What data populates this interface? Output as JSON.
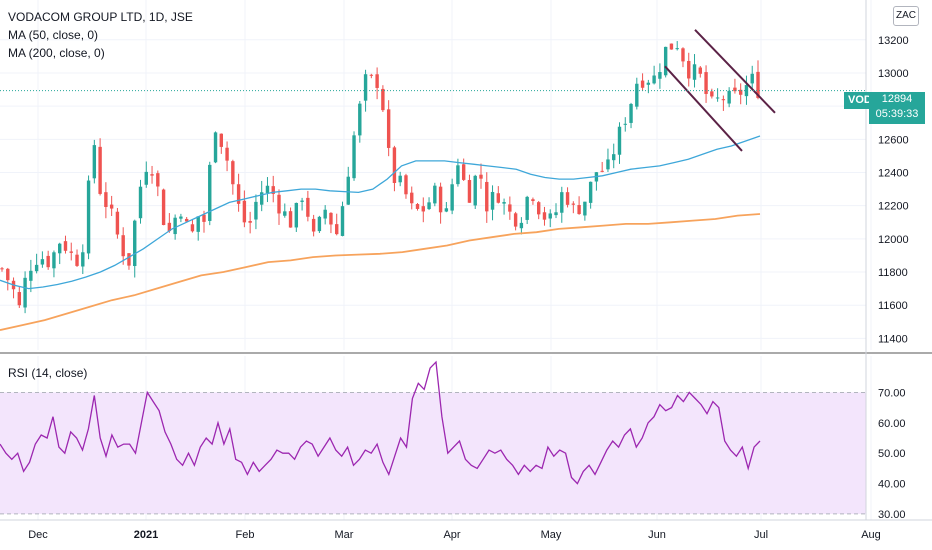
{
  "header": {
    "title": "VODACOM GROUP LTD, 1D, JSE",
    "ma50": "MA (50, close, 0)",
    "ma200": "MA (200, close, 0)",
    "currency": "ZAC"
  },
  "price_tag": {
    "symbol": "VOD",
    "price": "12894",
    "countdown": "05:39:33"
  },
  "rsi_label": "RSI (14, close)",
  "colors": {
    "up": "#26a69a",
    "down": "#ef5350",
    "ma50": "#3ea7d9",
    "ma200": "#f7a35c",
    "rsi": "#9c27b0",
    "rsi_band": "#f3e5fc",
    "trendline": "#5b2246"
  },
  "chart_data": [
    {
      "type": "candlestick",
      "title": "VODACOM GROUP LTD, 1D, JSE",
      "x_ticks": [
        "Dec",
        "2021",
        "Feb",
        "Mar",
        "Apr",
        "May",
        "Jun",
        "Jul",
        "Aug"
      ],
      "y_ticks": [
        11400,
        11600,
        11800,
        12000,
        12200,
        12400,
        12600,
        12800,
        13000,
        13200
      ],
      "ylim": [
        11330,
        13440
      ],
      "last_price": 12894,
      "series": [
        {
          "name": "MA (50, close, 0)",
          "values": [
            11750,
            11720,
            11700,
            11710,
            11725,
            11745,
            11770,
            11800,
            11840,
            11890,
            11940,
            12000,
            12060,
            12100,
            12140,
            12180,
            12220,
            12240,
            12260,
            12280,
            12290,
            12300,
            12300,
            12290,
            12285,
            12280,
            12300,
            12360,
            12440,
            12470,
            12470,
            12470,
            12460,
            12450,
            12440,
            12430,
            12420,
            12390,
            12370,
            12360,
            12360,
            12370,
            12380,
            12400,
            12420,
            12430,
            12440,
            12460,
            12480,
            12510,
            12540,
            12560,
            12590,
            12620
          ]
        },
        {
          "name": "MA (200, close, 0)",
          "values": [
            11450,
            11480,
            11510,
            11550,
            11590,
            11630,
            11660,
            11700,
            11740,
            11780,
            11800,
            11830,
            11860,
            11870,
            11890,
            11900,
            11905,
            11910,
            11920,
            11940,
            11960,
            11990,
            12010,
            12030,
            12040,
            12060,
            12070,
            12080,
            12090,
            12090,
            12100,
            12110,
            12120,
            12140,
            12150
          ]
        }
      ],
      "annotations": [
        "Falling channel: upper line from Jun 13240 down to Jul 12760; lower line from early Jun 13020 down to late Jun 12530"
      ]
    },
    {
      "type": "line",
      "title": "RSI (14, close)",
      "y_ticks": [
        "30.00",
        "40.00",
        "50.00",
        "60.00",
        "70.00"
      ],
      "ylim": [
        28,
        82
      ],
      "band": [
        30,
        70
      ],
      "series": [
        {
          "name": "RSI (14, close)",
          "values": [
            53,
            50,
            48,
            50,
            44,
            47,
            53,
            56,
            55,
            62,
            52,
            50,
            57,
            55,
            51,
            58,
            69,
            55,
            49,
            56,
            52,
            53,
            53,
            50,
            60,
            70,
            67,
            64,
            57,
            53,
            48,
            46,
            50,
            46,
            52,
            55,
            53,
            60,
            53,
            58,
            48,
            47,
            43,
            47,
            44,
            46,
            48,
            51,
            50,
            50,
            48,
            52,
            54,
            53,
            49,
            52,
            55,
            51,
            49,
            52,
            46,
            48,
            51,
            50,
            53,
            47,
            43,
            49,
            55,
            52,
            68,
            73,
            71,
            78,
            80,
            62,
            50,
            52,
            54,
            48,
            46,
            45,
            48,
            51,
            50,
            51,
            48,
            46,
            43,
            46,
            44,
            46,
            45,
            52,
            49,
            51,
            50,
            42,
            40,
            44,
            46,
            43,
            47,
            51,
            54,
            52,
            56,
            58,
            52,
            55,
            60,
            62,
            66,
            64,
            65,
            69,
            67,
            70,
            68,
            66,
            63,
            67,
            65,
            54,
            51,
            49,
            52,
            45,
            52,
            54
          ]
        }
      ]
    }
  ]
}
